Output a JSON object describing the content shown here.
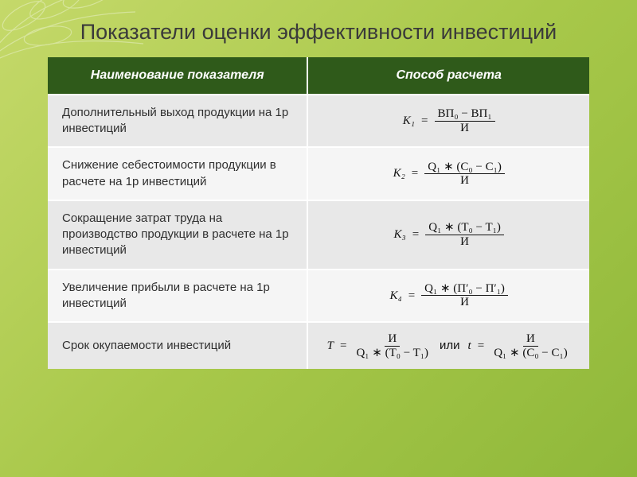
{
  "slide": {
    "title": "Показатели оценки эффективности инвестиций",
    "background_gradient": [
      "#c5d96a",
      "#a8c84a",
      "#8fb83a"
    ],
    "title_color": "#3a3a3a",
    "title_fontsize": 27
  },
  "table": {
    "header_bg": "#2f5a1a",
    "header_text_color": "#ffffff",
    "row_alt_a": "#e8e8e8",
    "row_alt_b": "#f5f5f5",
    "border_color": "#ffffff",
    "columns": [
      "Наименование показателя",
      "Способ расчета"
    ],
    "rows": [
      {
        "name": "Дополнительный выход продукции на 1р инвестиций",
        "formula_lhs": "K₁",
        "formula_num": "ВП₀ − ВП₁",
        "formula_den": "И"
      },
      {
        "name": "Снижение себестоимости продукции в расчете на 1р инвестиций",
        "formula_lhs": "K₂",
        "formula_num": "Q₁ ∗ (C₀ − C₁)",
        "formula_den": "И"
      },
      {
        "name": "Сокращение затрат труда на производство продукции в расчете на 1р инвестиций",
        "formula_lhs": "K₃",
        "formula_num": "Q₁ ∗ (T₀ − T₁)",
        "formula_den": "И"
      },
      {
        "name": "Увеличение прибыли в расчете на 1р инвестиций",
        "formula_lhs": "K₄",
        "formula_num": "Q₁ ∗ (П′₀ − П′₁)",
        "formula_den": "И"
      },
      {
        "name": "Срок окупаемости инвестиций",
        "formula_lhs": "T",
        "formula_num": "И",
        "formula_den": "Q₁ ∗ (T₀ − T₁)",
        "alt_connector": "или",
        "alt_lhs": "t",
        "alt_num": "И",
        "alt_den": "Q₁ ∗ (C₀ − C₁)"
      }
    ]
  }
}
